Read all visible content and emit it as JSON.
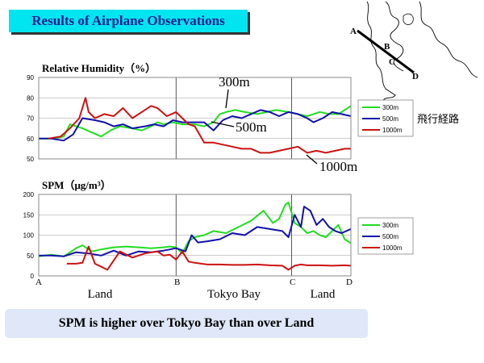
{
  "title": "Results of Airplane Observations",
  "summary": "SPM is higher over Tokyo Bay than over Land",
  "map": {
    "points": [
      "A",
      "B",
      "C",
      "D"
    ],
    "route_label": "飛行経路",
    "route_color": "#000000"
  },
  "region_labels": [
    "Land",
    "Tokyo Bay",
    "Land"
  ],
  "section_markers": [
    "A",
    "B",
    "C",
    "D"
  ],
  "series_colors": {
    "300m": "#22dd22",
    "500m": "#1111aa",
    "1000m": "#cc1111"
  },
  "chart_data": [
    {
      "type": "line",
      "title": "Relative Humidity（%）",
      "ylim": [
        50,
        90
      ],
      "yticks": [
        "50",
        "60",
        "70",
        "80",
        "90"
      ],
      "x_sections": [
        "A",
        "B",
        "C",
        "D"
      ],
      "legend": [
        "300m",
        "500m",
        "1000m"
      ],
      "annotations": [
        "300m",
        "500m",
        "1000m"
      ],
      "grid": true,
      "series": [
        {
          "name": "300m",
          "x": [
            0,
            5,
            8,
            10,
            12,
            14,
            17,
            20,
            23,
            26,
            30,
            33,
            36,
            38,
            40,
            43,
            46,
            50,
            53,
            56,
            58,
            60,
            63,
            66,
            70,
            73,
            76,
            80,
            83,
            86,
            90,
            93,
            96,
            98,
            100
          ],
          "values": [
            60,
            60,
            61,
            67,
            66,
            65,
            63,
            61,
            64,
            66,
            65,
            64,
            66,
            68,
            67,
            68,
            67,
            67,
            66,
            68,
            72,
            73,
            74,
            73,
            72,
            73,
            74,
            73,
            72,
            71,
            73,
            72,
            72,
            74,
            76
          ]
        },
        {
          "name": "500m",
          "x": [
            0,
            4,
            8,
            11,
            14,
            18,
            21,
            24,
            27,
            30,
            34,
            37,
            40,
            43,
            46,
            50,
            53,
            56,
            59,
            62,
            65,
            68,
            71,
            74,
            77,
            80,
            83,
            86,
            88,
            91,
            94,
            97,
            100
          ],
          "values": [
            60,
            60,
            59,
            62,
            70,
            69,
            68,
            66,
            67,
            65,
            66,
            67,
            66,
            69,
            68,
            68,
            68,
            64,
            69,
            71,
            70,
            72,
            74,
            73,
            71,
            73,
            72,
            70,
            68,
            70,
            73,
            72,
            71
          ]
        },
        {
          "name": "1000m",
          "x": [
            3,
            7,
            10,
            13,
            15,
            16,
            18,
            21,
            24,
            27,
            30,
            33,
            36,
            38,
            41,
            44,
            46,
            48,
            50,
            53,
            56,
            59,
            62,
            65,
            68,
            71,
            74,
            77,
            80,
            83,
            86,
            89,
            92,
            95,
            98,
            100
          ],
          "values": [
            60,
            61,
            65,
            70,
            80,
            73,
            70,
            72,
            71,
            75,
            70,
            73,
            76,
            75,
            71,
            73,
            70,
            67,
            66,
            58,
            58,
            57,
            56,
            55,
            55,
            53,
            53,
            54,
            55,
            56,
            53,
            54,
            53,
            54,
            55,
            55
          ]
        }
      ]
    },
    {
      "type": "line",
      "title": "SPM（μg/m³）",
      "ylim": [
        0,
        200
      ],
      "yticks": [
        "0",
        "50",
        "100",
        "150",
        "200"
      ],
      "x_sections": [
        "A",
        "B",
        "C",
        "D"
      ],
      "legend": [
        "300m",
        "500m",
        "1000m"
      ],
      "grid": true,
      "series": [
        {
          "name": "300m",
          "x": [
            0,
            4,
            8,
            12,
            14,
            17,
            20,
            24,
            28,
            32,
            36,
            40,
            42,
            44,
            46,
            48,
            50,
            53,
            56,
            60,
            64,
            68,
            72,
            75,
            77,
            79,
            80,
            82,
            84,
            86,
            88,
            90,
            92,
            94,
            96,
            98,
            100
          ],
          "values": [
            48,
            52,
            48,
            68,
            75,
            60,
            65,
            70,
            72,
            70,
            68,
            70,
            72,
            70,
            55,
            85,
            95,
            100,
            110,
            105,
            120,
            135,
            160,
            130,
            140,
            175,
            180,
            130,
            120,
            105,
            110,
            100,
            95,
            110,
            125,
            90,
            80
          ]
        },
        {
          "name": "500m",
          "x": [
            0,
            4,
            8,
            12,
            16,
            20,
            24,
            28,
            32,
            36,
            40,
            44,
            47,
            49,
            51,
            54,
            58,
            62,
            66,
            70,
            74,
            78,
            80,
            82,
            84,
            85,
            87,
            89,
            91,
            93,
            95,
            97,
            100
          ],
          "values": [
            50,
            50,
            48,
            58,
            55,
            50,
            62,
            50,
            60,
            58,
            62,
            68,
            60,
            100,
            82,
            85,
            90,
            105,
            100,
            120,
            115,
            110,
            95,
            150,
            120,
            170,
            160,
            125,
            140,
            120,
            110,
            105,
            115
          ]
        },
        {
          "name": "1000m",
          "x": [
            9,
            12,
            14,
            16,
            18,
            22,
            26,
            30,
            34,
            38,
            40,
            42,
            44,
            46,
            48,
            50,
            54,
            58,
            62,
            66,
            70,
            74,
            78,
            80,
            82,
            84,
            86,
            90,
            94,
            98,
            100
          ],
          "values": [
            30,
            30,
            32,
            72,
            30,
            15,
            60,
            45,
            55,
            60,
            50,
            52,
            40,
            60,
            35,
            32,
            28,
            28,
            27,
            27,
            28,
            26,
            25,
            15,
            25,
            28,
            26,
            26,
            25,
            26,
            25
          ]
        }
      ]
    }
  ]
}
